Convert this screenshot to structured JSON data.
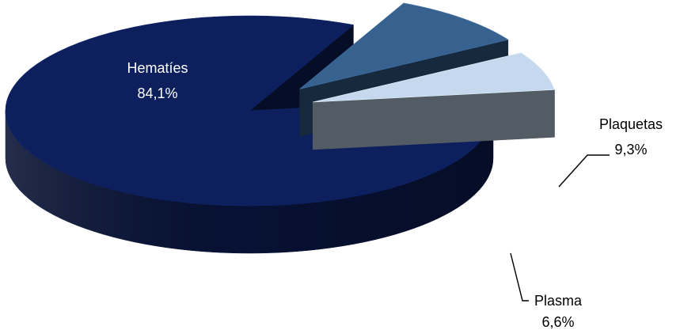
{
  "chart_data": {
    "type": "pie",
    "title": "",
    "style": "3d-exploded",
    "categories": [
      "Hematíes",
      "Plaquetas",
      "Plasma"
    ],
    "values": [
      84.1,
      9.3,
      6.6
    ],
    "data_labels": [
      "84,1%",
      "9,3%",
      "6,6%"
    ],
    "colors": {
      "Hematíes": "#0d1f5c",
      "Plaquetas": "#37628f",
      "Plasma": "#c6d8ee"
    },
    "legend": "none"
  }
}
